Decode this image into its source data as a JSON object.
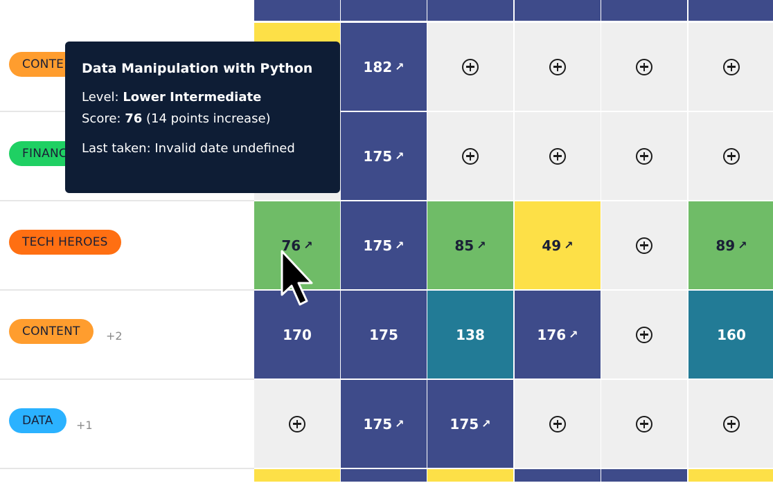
{
  "colors": {
    "navy": "#3e4b8a",
    "green": "#6fbc67",
    "yellow": "#fde047",
    "teal": "#227b96",
    "empty": "#efefef",
    "tooltip_bg": "#0e1d35"
  },
  "rows": [
    {
      "tag": "CONTE",
      "tag_color": "#ff9d2e",
      "extra": ""
    },
    {
      "tag": "FINANC",
      "tag_color": "#1fd063",
      "extra": ""
    },
    {
      "tag": "TECH HEROES",
      "tag_color": "#ff6f12",
      "extra": ""
    },
    {
      "tag": "CONTENT",
      "tag_color": "#ff9d2e",
      "extra": "+2"
    },
    {
      "tag": "DATA",
      "tag_color": "#2bb2ff",
      "extra": "+1"
    }
  ],
  "grid": [
    [
      {
        "kind": "yellow",
        "value": ""
      },
      {
        "kind": "navy",
        "value": "182",
        "arrow": true
      },
      {
        "kind": "empty"
      },
      {
        "kind": "empty"
      },
      {
        "kind": "empty"
      },
      {
        "kind": "empty"
      }
    ],
    [
      {
        "kind": "empty"
      },
      {
        "kind": "navy",
        "value": "175",
        "arrow": true
      },
      {
        "kind": "empty"
      },
      {
        "kind": "empty"
      },
      {
        "kind": "empty"
      },
      {
        "kind": "empty"
      }
    ],
    [
      {
        "kind": "green",
        "value": "76",
        "arrow": true
      },
      {
        "kind": "navy",
        "value": "175",
        "arrow": true
      },
      {
        "kind": "green",
        "value": "85",
        "arrow": true
      },
      {
        "kind": "yellow",
        "value": "49",
        "arrow": true
      },
      {
        "kind": "empty"
      },
      {
        "kind": "green",
        "value": "89",
        "arrow": true
      }
    ],
    [
      {
        "kind": "navy",
        "value": "170"
      },
      {
        "kind": "navy",
        "value": "175"
      },
      {
        "kind": "teal",
        "value": "138"
      },
      {
        "kind": "navy",
        "value": "176",
        "arrow": true
      },
      {
        "kind": "empty"
      },
      {
        "kind": "teal",
        "value": "160"
      }
    ],
    [
      {
        "kind": "empty"
      },
      {
        "kind": "navy",
        "value": "175",
        "arrow": true
      },
      {
        "kind": "navy",
        "value": "175",
        "arrow": true
      },
      {
        "kind": "empty"
      },
      {
        "kind": "empty"
      },
      {
        "kind": "empty"
      }
    ]
  ],
  "top_strip": [
    "navy",
    "navy",
    "navy",
    "navy",
    "navy",
    "navy"
  ],
  "bottom_strip": [
    "yellow",
    "navy",
    "yellow",
    "navy",
    "navy",
    "yellow"
  ],
  "tooltip": {
    "title": "Data Manipulation with Python",
    "level_label": "Level:",
    "level_value": "Lower Intermediate",
    "score_label": "Score:",
    "score_value": "76",
    "score_note": "(14 points increase)",
    "last_taken": "Last taken: Invalid date undefined"
  },
  "arrow_glyph": "↗"
}
